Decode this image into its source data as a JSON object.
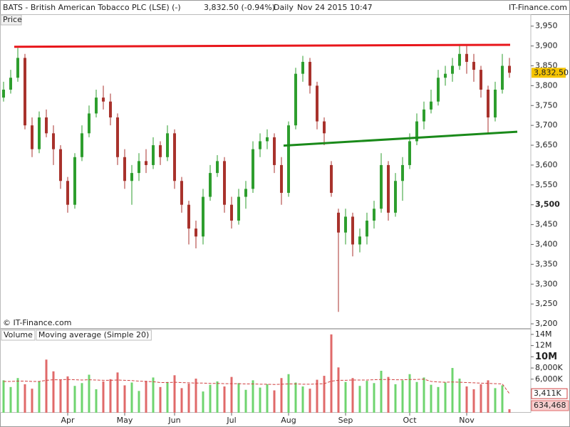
{
  "chart_data": [
    {
      "type": "candlestick",
      "title": "BATS - British American Tobacco PLC (LSE) (-)",
      "last_quote": "3,832.50 (-0.94%)",
      "interval": "Daily",
      "timestamp": "Nov 24 2015 10:47",
      "source": "IT-Finance.com",
      "y_label": "Price",
      "watermark": "© IT-Finance.com",
      "categories": [
        null,
        null,
        null,
        null,
        null,
        null,
        null,
        null,
        null,
        "Apr",
        null,
        null,
        null,
        null,
        null,
        null,
        null,
        "May",
        null,
        null,
        null,
        null,
        null,
        null,
        "Jun",
        null,
        null,
        null,
        null,
        null,
        null,
        null,
        "Jul",
        null,
        null,
        null,
        null,
        null,
        null,
        null,
        "Aug",
        null,
        null,
        null,
        null,
        null,
        null,
        null,
        "Sep",
        null,
        null,
        null,
        null,
        null,
        null,
        null,
        null,
        "Oct",
        null,
        null,
        null,
        null,
        null,
        null,
        null,
        "Nov",
        null,
        null,
        null,
        null,
        null,
        null
      ],
      "open": [
        3770,
        3790,
        3820,
        3870,
        3700,
        3640,
        3720,
        3680,
        3640,
        3560,
        3500,
        3620,
        3680,
        3730,
        3770,
        3760,
        3720,
        3620,
        3560,
        3580,
        3610,
        3600,
        3650,
        3620,
        3680,
        3560,
        3500,
        3440,
        3420,
        3520,
        3580,
        3610,
        3500,
        3460,
        3520,
        3540,
        3640,
        3660,
        3670,
        3600,
        3530,
        3700,
        3830,
        3860,
        3800,
        3710,
        3600,
        3480,
        3430,
        3470,
        3400,
        3420,
        3460,
        3490,
        3600,
        3480,
        3560,
        3600,
        3660,
        3710,
        3740,
        3760,
        3820,
        3830,
        3850,
        3880,
        3860,
        3840,
        3790,
        3720,
        3790,
        3850
      ],
      "high": [
        3810,
        3840,
        3895,
        3880,
        3720,
        3735,
        3740,
        3700,
        3650,
        3570,
        3630,
        3700,
        3750,
        3790,
        3800,
        3780,
        3730,
        3640,
        3600,
        3630,
        3640,
        3670,
        3660,
        3700,
        3690,
        3570,
        3510,
        3460,
        3540,
        3600,
        3625,
        3620,
        3520,
        3540,
        3560,
        3660,
        3680,
        3690,
        3680,
        3620,
        3710,
        3845,
        3875,
        3870,
        3810,
        3720,
        3610,
        3490,
        3490,
        3480,
        3440,
        3480,
        3510,
        3630,
        3610,
        3580,
        3620,
        3680,
        3730,
        3760,
        3790,
        3840,
        3850,
        3870,
        3905,
        3900,
        3880,
        3850,
        3800,
        3810,
        3880,
        3870
      ],
      "low": [
        3760,
        3780,
        3810,
        3690,
        3620,
        3630,
        3670,
        3600,
        3540,
        3480,
        3490,
        3610,
        3670,
        3720,
        3740,
        3700,
        3600,
        3540,
        3500,
        3560,
        3580,
        3590,
        3600,
        3610,
        3540,
        3480,
        3400,
        3390,
        3400,
        3510,
        3570,
        3480,
        3440,
        3450,
        3490,
        3530,
        3620,
        3640,
        3580,
        3500,
        3520,
        3690,
        3810,
        3780,
        3690,
        3650,
        3520,
        3230,
        3400,
        3370,
        3380,
        3400,
        3440,
        3480,
        3460,
        3470,
        3510,
        3590,
        3650,
        3690,
        3730,
        3750,
        3800,
        3810,
        3840,
        3830,
        3810,
        3770,
        3680,
        3710,
        3780,
        3820
      ],
      "close": [
        3790,
        3820,
        3870,
        3700,
        3640,
        3720,
        3680,
        3640,
        3560,
        3500,
        3620,
        3680,
        3730,
        3770,
        3760,
        3720,
        3620,
        3560,
        3580,
        3610,
        3600,
        3650,
        3620,
        3680,
        3560,
        3500,
        3440,
        3420,
        3520,
        3580,
        3610,
        3500,
        3460,
        3520,
        3540,
        3640,
        3660,
        3670,
        3600,
        3530,
        3700,
        3830,
        3860,
        3800,
        3710,
        3680,
        3530,
        3430,
        3470,
        3400,
        3420,
        3460,
        3490,
        3600,
        3480,
        3560,
        3600,
        3660,
        3710,
        3740,
        3760,
        3820,
        3830,
        3850,
        3880,
        3860,
        3840,
        3790,
        3720,
        3790,
        3850,
        3832.5
      ],
      "last_label": "3,832.50",
      "up_color": "#2e9e2e",
      "down_color": "#a8322c",
      "last_label_color": "#f5c400",
      "xlim": [
        -0.5,
        74
      ],
      "ylim": [
        3187.5,
        3980
      ],
      "yticks": [
        {
          "value": 3950,
          "label": "3,950"
        },
        {
          "value": 3900,
          "label": "3,900"
        },
        {
          "value": 3850,
          "label": "3,850"
        },
        {
          "value": 3800,
          "label": "3,800"
        },
        {
          "value": 3750,
          "label": "3,750"
        },
        {
          "value": 3700,
          "label": "3,700"
        },
        {
          "value": 3650,
          "label": "3,650"
        },
        {
          "value": 3600,
          "label": "3,600"
        },
        {
          "value": 3550,
          "label": "3,550"
        },
        {
          "value": 3500,
          "label": "3,500",
          "bold": true
        },
        {
          "value": 3450,
          "label": "3,450"
        },
        {
          "value": 3400,
          "label": "3,400"
        },
        {
          "value": 3350,
          "label": "3,350"
        },
        {
          "value": 3300,
          "label": "3,300"
        },
        {
          "value": 3250,
          "label": "3,250"
        },
        {
          "value": 3200,
          "label": "3,200"
        }
      ],
      "trendlines": [
        {
          "color": "#e8161b",
          "x": [
            1.5,
            71.1
          ],
          "values": [
            3898,
            3903
          ]
        },
        {
          "color": "#1a8a1a",
          "x": [
            39.3,
            72.1
          ],
          "values": [
            3649,
            3684
          ]
        }
      ]
    },
    {
      "type": "bar",
      "series": [
        {
          "name": "Volume",
          "up_color": "#6fd46f",
          "down_color": "#e06a6a",
          "values": [
            5800000,
            4600000,
            6200000,
            5100000,
            4300000,
            5600000,
            9500000,
            7400000,
            5900000,
            6500000,
            4800000,
            5300000,
            6800000,
            4200000,
            5600000,
            6000000,
            7200000,
            4900000,
            5400000,
            3900000,
            5700000,
            6300000,
            4600000,
            5500000,
            6700000,
            4400000,
            5200000,
            6100000,
            3800000,
            5000000,
            5600000,
            4700000,
            6400000,
            5300000,
            4100000,
            5800000,
            4500000,
            5100000,
            4000000,
            6200000,
            6900000,
            5400000,
            4700000,
            4300000,
            5900000,
            6600000,
            14000000,
            8100000,
            5500000,
            6200000,
            4800000,
            5700000,
            5300000,
            7500000,
            6400000,
            5100000,
            5800000,
            6900000,
            5500000,
            6300000,
            5000000,
            4600000,
            5400000,
            8000000,
            6100000,
            4700000,
            4200000,
            5100000,
            5800000,
            4400000,
            4900000,
            634468
          ],
          "last_label": "634,468"
        },
        {
          "name": "Moving average (Simple 20)",
          "color": "#d04040",
          "values": [
            5600000,
            5600000,
            5650000,
            5650000,
            5600000,
            5600000,
            5800000,
            5900000,
            5900000,
            5950000,
            5900000,
            5850000,
            5900000,
            5850000,
            5800000,
            5800000,
            5850000,
            5800000,
            5750000,
            5650000,
            5600000,
            5550000,
            5400000,
            5400000,
            5450000,
            5400000,
            5350000,
            5300000,
            5300000,
            5250000,
            5250000,
            5200000,
            5200000,
            5200000,
            5150000,
            5150000,
            5100000,
            5100000,
            5050000,
            5100000,
            5150000,
            5150000,
            5100000,
            5100000,
            5150000,
            5200000,
            5650000,
            5800000,
            5800000,
            5850000,
            5850000,
            5850000,
            5900000,
            5950000,
            5950000,
            5900000,
            5900000,
            5950000,
            5950000,
            6000000,
            5600000,
            5500000,
            5450000,
            5500000,
            5450000,
            5400000,
            5350000,
            5300000,
            5250000,
            5200000,
            5150000,
            3411000
          ],
          "last_label": "3,411K"
        }
      ],
      "ylim": [
        0,
        15000000
      ],
      "yticks": [
        {
          "value": 14000000,
          "label": "14M"
        },
        {
          "value": 12000000,
          "label": "12M"
        },
        {
          "value": 10000000,
          "label": "10M",
          "bold": true
        },
        {
          "value": 8000000,
          "label": "8,000K"
        },
        {
          "value": 6000000,
          "label": "6,000K"
        }
      ]
    }
  ]
}
